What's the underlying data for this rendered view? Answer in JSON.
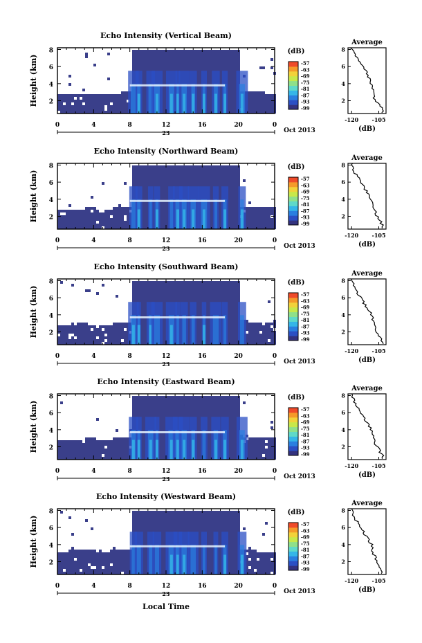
{
  "colors": {
    "cloud_base": "#3a3f8a",
    "palette": [
      "#33327e",
      "#2b4fc4",
      "#2a7fe0",
      "#35b6e8",
      "#5fd9c9",
      "#8fe08a",
      "#c8e84a",
      "#f2d23a",
      "#f59a2a",
      "#ef4b2a"
    ]
  },
  "common": {
    "date_label": "Oct 2013",
    "day_label": "23",
    "colorbar_unit": "(dB)",
    "colorbar_ticks": [
      "-57",
      "-63",
      "-69",
      "-75",
      "-81",
      "-87",
      "-93",
      "-99"
    ],
    "avg_title": "Average",
    "avg_xlabel": "(dB)",
    "avg_xticks": [
      "-120",
      "-105"
    ],
    "x_ticks": [
      "0",
      "4",
      "8",
      "12",
      "16",
      "20",
      "0"
    ],
    "bottom_xlabel": "Local Time"
  },
  "chart_data": [
    {
      "type": "heatmap",
      "title": "Echo Intensity (Vertical Beam)",
      "ylabel": "Height (km)",
      "yticks": [
        "2",
        "4",
        "6",
        "8"
      ],
      "xlim": [
        0,
        24
      ],
      "ylim": [
        0.5,
        8.2
      ],
      "color_scale_db": [
        -99,
        -57
      ],
      "cloud_top_km": [
        2.8,
        2.8,
        2.8,
        2.9,
        2.9,
        2.8,
        3.0,
        3.1,
        8.0,
        8.0,
        8.0,
        8.0,
        8.0,
        8.0,
        8.0,
        8.0,
        8.0,
        8.0,
        8.0,
        8.0,
        3.2,
        3.2,
        3.1,
        3.0
      ],
      "melting_layer_km": 3.8,
      "average_profile": {
        "height_km": [
          1,
          2,
          3,
          4,
          5,
          6,
          7,
          8
        ],
        "db": [
          -103,
          -107,
          -108,
          -109,
          -111,
          -114,
          -117,
          -120
        ]
      }
    },
    {
      "type": "heatmap",
      "title": "Echo Intensity (Northward Beam)",
      "ylabel": "Height (km)",
      "yticks": [
        "2",
        "4",
        "6",
        "8"
      ],
      "xlim": [
        0,
        24
      ],
      "ylim": [
        0.5,
        8.2
      ],
      "color_scale_db": [
        -99,
        -57
      ],
      "cloud_top_km": [
        2.9,
        3.0,
        3.0,
        3.1,
        3.0,
        2.9,
        3.2,
        3.3,
        8.0,
        8.0,
        8.0,
        8.0,
        8.0,
        8.0,
        8.0,
        8.0,
        8.0,
        8.0,
        8.0,
        8.0,
        3.4,
        3.3,
        3.2,
        3.1
      ],
      "melting_layer_km": 3.8,
      "average_profile": {
        "height_km": [
          1,
          2,
          3,
          4,
          5,
          6,
          7,
          8
        ],
        "db": [
          -103,
          -106,
          -108,
          -109,
          -112,
          -115,
          -118,
          -120
        ]
      }
    },
    {
      "type": "heatmap",
      "title": "Echo Intensity (Southward Beam)",
      "ylabel": "Height (km)",
      "yticks": [
        "2",
        "4",
        "6",
        "8"
      ],
      "xlim": [
        0,
        24
      ],
      "ylim": [
        0.5,
        8.2
      ],
      "color_scale_db": [
        -99,
        -57
      ],
      "cloud_top_km": [
        2.9,
        3.0,
        3.1,
        3.0,
        3.0,
        2.9,
        3.2,
        3.3,
        8.0,
        8.0,
        8.0,
        8.0,
        8.0,
        8.0,
        8.0,
        8.0,
        8.0,
        8.0,
        8.0,
        8.0,
        3.5,
        3.4,
        3.3,
        3.1
      ],
      "melting_layer_km": 3.7,
      "average_profile": {
        "height_km": [
          1,
          2,
          3,
          4,
          5,
          6,
          7,
          8
        ],
        "db": [
          -103,
          -106,
          -108,
          -109,
          -112,
          -115,
          -118,
          -120
        ]
      }
    },
    {
      "type": "heatmap",
      "title": "Echo Intensity (Eastward Beam)",
      "ylabel": "Height (km)",
      "yticks": [
        "2",
        "4",
        "6",
        "8"
      ],
      "xlim": [
        0,
        24
      ],
      "ylim": [
        0.5,
        8.2
      ],
      "color_scale_db": [
        -99,
        -57
      ],
      "cloud_top_km": [
        2.9,
        3.0,
        3.0,
        3.1,
        3.0,
        2.9,
        3.2,
        3.3,
        8.0,
        8.0,
        8.0,
        8.0,
        8.0,
        8.0,
        8.0,
        8.0,
        8.0,
        8.0,
        8.0,
        8.0,
        3.5,
        3.4,
        3.3,
        3.1
      ],
      "melting_layer_km": 3.7,
      "average_profile": {
        "height_km": [
          1,
          2,
          3,
          4,
          5,
          6,
          7,
          8
        ],
        "db": [
          -103,
          -106,
          -108,
          -109,
          -112,
          -115,
          -118,
          -120
        ]
      }
    },
    {
      "type": "heatmap",
      "title": "Echo Intensity (Westward Beam)",
      "ylabel": "Height (km)",
      "yticks": [
        "2",
        "4",
        "6",
        "8"
      ],
      "xlim": [
        0,
        24
      ],
      "ylim": [
        0.5,
        8.2
      ],
      "color_scale_db": [
        -99,
        -57
      ],
      "cloud_top_km": [
        3.4,
        3.5,
        3.5,
        3.6,
        3.4,
        3.3,
        3.5,
        3.6,
        8.0,
        8.0,
        8.0,
        8.0,
        8.0,
        8.0,
        8.0,
        8.0,
        8.0,
        8.0,
        8.0,
        8.0,
        3.6,
        3.5,
        3.4,
        3.3
      ],
      "melting_layer_km": 3.8,
      "average_profile": {
        "height_km": [
          1,
          2,
          3,
          4,
          5,
          6,
          7,
          8
        ],
        "db": [
          -103,
          -106,
          -108,
          -109,
          -112,
          -115,
          -118,
          -120
        ]
      }
    }
  ]
}
